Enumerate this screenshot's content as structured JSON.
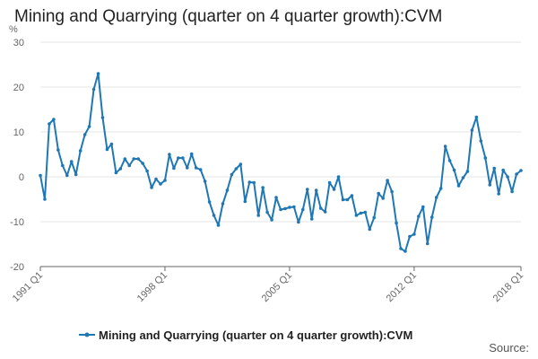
{
  "chart_data": {
    "type": "line",
    "title": "Mining and Quarrying (quarter on 4 quarter growth):CVM",
    "ylabel": "%",
    "xlabel": "",
    "ylim": [
      -20,
      30
    ],
    "yticks": [
      -20,
      -10,
      0,
      10,
      20,
      30
    ],
    "xticks": [
      "1991 Q1",
      "1998 Q1",
      "2005 Q1",
      "2012 Q1",
      "2018 Q1"
    ],
    "xtick_index": [
      0,
      28,
      56,
      84,
      108
    ],
    "grid": true,
    "legend_position": "bottom",
    "colors": {
      "line": "#1f77b4",
      "grid": "#e5e5e5",
      "axis": "#666666"
    },
    "series": [
      {
        "name": "Mining and Quarrying (quarter on 4 quarter growth):CVM",
        "start": "1991 Q1",
        "values": [
          0.3,
          -5.0,
          11.8,
          12.8,
          6.0,
          2.5,
          0.3,
          3.4,
          0.5,
          5.8,
          9.4,
          11.2,
          19.5,
          23.0,
          13.2,
          6.1,
          7.3,
          0.9,
          1.8,
          4.0,
          2.5,
          4.0,
          4.0,
          3.0,
          1.3,
          -2.4,
          -0.5,
          -1.6,
          -0.8,
          5.0,
          1.9,
          4.2,
          4.2,
          2.0,
          5.1,
          2.0,
          1.6,
          -1.0,
          -5.6,
          -8.6,
          -10.8,
          -6.0,
          -3.0,
          0.5,
          1.8,
          2.8,
          -5.5,
          -1.2,
          -1.3,
          -8.6,
          -2.4,
          -7.9,
          -9.6,
          -4.6,
          -7.3,
          -7.1,
          -6.8,
          -6.7,
          -10.1,
          -7.3,
          -2.8,
          -9.4,
          -3.0,
          -7.0,
          -7.8,
          -1.3,
          -2.8,
          0.0,
          -5.1,
          -5.1,
          -4.2,
          -8.6,
          -8.1,
          -7.9,
          -11.7,
          -9.1,
          -3.7,
          -4.8,
          -0.8,
          -3.3,
          -10.3,
          -16.0,
          -16.6,
          -13.3,
          -12.8,
          -8.8,
          -6.7,
          -14.9,
          -9.0,
          -4.6,
          -2.6,
          6.8,
          3.6,
          1.5,
          -2.0,
          -0.2,
          1.2,
          10.4,
          13.3,
          8.0,
          4.2,
          -1.8,
          1.9,
          -3.8,
          1.5,
          0.0,
          -3.3,
          0.6,
          1.4
        ]
      }
    ]
  },
  "footer": {
    "source_label": "Source:"
  }
}
